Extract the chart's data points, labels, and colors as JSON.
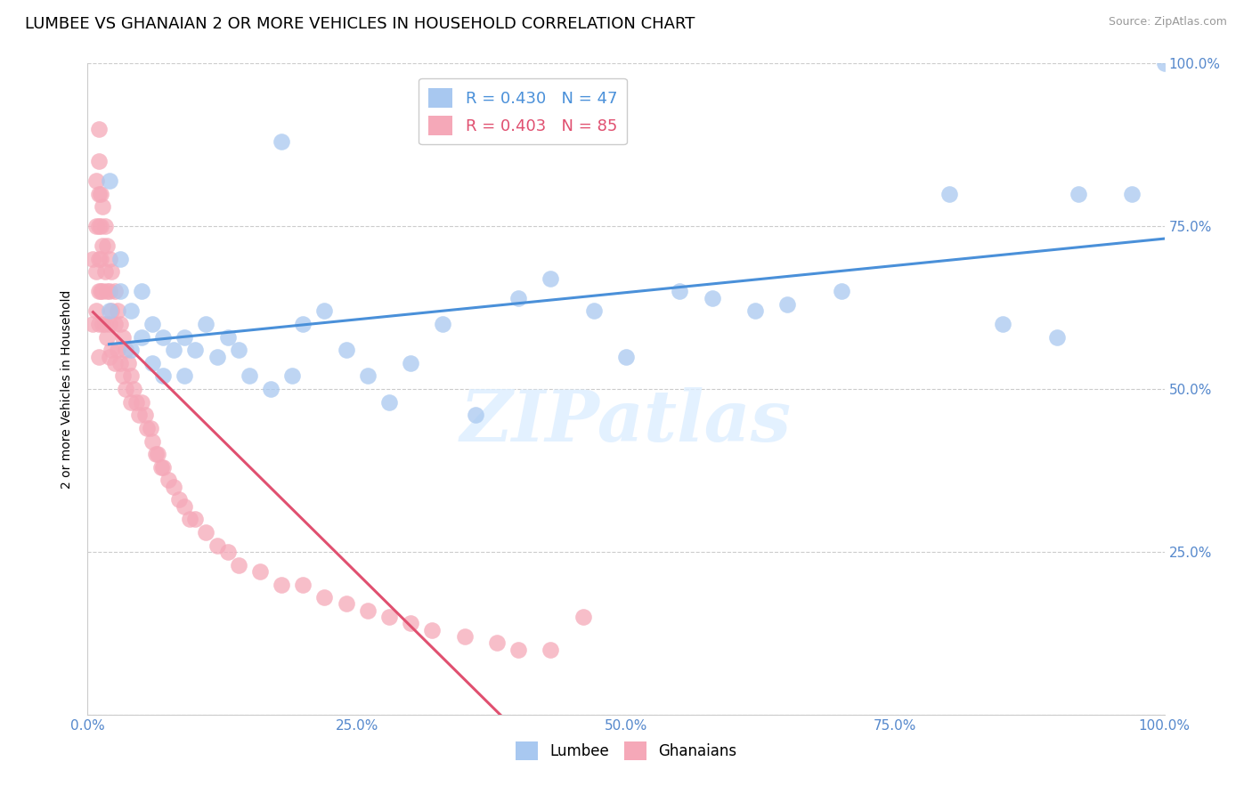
{
  "title": "LUMBEE VS GHANAIAN 2 OR MORE VEHICLES IN HOUSEHOLD CORRELATION CHART",
  "source_text": "Source: ZipAtlas.com",
  "ylabel": "2 or more Vehicles in Household",
  "watermark": "ZIPatlas",
  "xlim": [
    0.0,
    1.0
  ],
  "ylim": [
    0.0,
    1.0
  ],
  "xticks": [
    0.0,
    0.25,
    0.5,
    0.75,
    1.0
  ],
  "yticks": [
    0.0,
    0.25,
    0.5,
    0.75,
    1.0
  ],
  "xtick_labels": [
    "0.0%",
    "25.0%",
    "50.0%",
    "75.0%",
    "100.0%"
  ],
  "ytick_labels_right": [
    "",
    "25.0%",
    "50.0%",
    "75.0%",
    "100.0%"
  ],
  "lumbee_color": "#A8C8F0",
  "ghanaian_color": "#F5A8B8",
  "lumbee_line_color": "#4A90D9",
  "ghanaian_line_color": "#E05070",
  "lumbee_R": 0.43,
  "lumbee_N": 47,
  "ghanaian_R": 0.403,
  "ghanaian_N": 85,
  "title_fontsize": 13,
  "axis_label_fontsize": 10,
  "tick_fontsize": 11,
  "legend_fontsize": 13,
  "lumbee_x": [
    0.02,
    0.02,
    0.03,
    0.03,
    0.04,
    0.04,
    0.05,
    0.05,
    0.06,
    0.06,
    0.07,
    0.07,
    0.08,
    0.09,
    0.09,
    0.1,
    0.11,
    0.12,
    0.13,
    0.14,
    0.15,
    0.17,
    0.18,
    0.19,
    0.2,
    0.22,
    0.24,
    0.26,
    0.28,
    0.3,
    0.33,
    0.36,
    0.4,
    0.43,
    0.47,
    0.5,
    0.55,
    0.58,
    0.62,
    0.65,
    0.7,
    0.8,
    0.85,
    0.9,
    0.92,
    0.97,
    1.0
  ],
  "lumbee_y": [
    0.62,
    0.82,
    0.65,
    0.7,
    0.56,
    0.62,
    0.58,
    0.65,
    0.54,
    0.6,
    0.52,
    0.58,
    0.56,
    0.52,
    0.58,
    0.56,
    0.6,
    0.55,
    0.58,
    0.56,
    0.52,
    0.5,
    0.88,
    0.52,
    0.6,
    0.62,
    0.56,
    0.52,
    0.48,
    0.54,
    0.6,
    0.46,
    0.64,
    0.67,
    0.62,
    0.55,
    0.65,
    0.64,
    0.62,
    0.63,
    0.65,
    0.8,
    0.6,
    0.58,
    0.8,
    0.8,
    1.0
  ],
  "ghanaian_x": [
    0.005,
    0.005,
    0.008,
    0.008,
    0.008,
    0.008,
    0.01,
    0.01,
    0.01,
    0.01,
    0.01,
    0.01,
    0.01,
    0.01,
    0.012,
    0.012,
    0.012,
    0.012,
    0.014,
    0.014,
    0.014,
    0.014,
    0.016,
    0.016,
    0.016,
    0.018,
    0.018,
    0.018,
    0.02,
    0.02,
    0.02,
    0.02,
    0.022,
    0.022,
    0.022,
    0.025,
    0.025,
    0.025,
    0.028,
    0.028,
    0.03,
    0.03,
    0.033,
    0.033,
    0.035,
    0.035,
    0.038,
    0.04,
    0.04,
    0.043,
    0.045,
    0.048,
    0.05,
    0.053,
    0.055,
    0.058,
    0.06,
    0.063,
    0.065,
    0.068,
    0.07,
    0.075,
    0.08,
    0.085,
    0.09,
    0.095,
    0.1,
    0.11,
    0.12,
    0.13,
    0.14,
    0.16,
    0.18,
    0.2,
    0.22,
    0.24,
    0.26,
    0.28,
    0.3,
    0.32,
    0.35,
    0.38,
    0.4,
    0.43,
    0.46
  ],
  "ghanaian_y": [
    0.7,
    0.6,
    0.82,
    0.75,
    0.68,
    0.62,
    0.9,
    0.85,
    0.8,
    0.75,
    0.7,
    0.65,
    0.6,
    0.55,
    0.8,
    0.75,
    0.7,
    0.65,
    0.78,
    0.72,
    0.65,
    0.6,
    0.75,
    0.68,
    0.6,
    0.72,
    0.65,
    0.58,
    0.7,
    0.65,
    0.6,
    0.55,
    0.68,
    0.62,
    0.56,
    0.65,
    0.6,
    0.54,
    0.62,
    0.56,
    0.6,
    0.54,
    0.58,
    0.52,
    0.56,
    0.5,
    0.54,
    0.52,
    0.48,
    0.5,
    0.48,
    0.46,
    0.48,
    0.46,
    0.44,
    0.44,
    0.42,
    0.4,
    0.4,
    0.38,
    0.38,
    0.36,
    0.35,
    0.33,
    0.32,
    0.3,
    0.3,
    0.28,
    0.26,
    0.25,
    0.23,
    0.22,
    0.2,
    0.2,
    0.18,
    0.17,
    0.16,
    0.15,
    0.14,
    0.13,
    0.12,
    0.11,
    0.1,
    0.1,
    0.15
  ]
}
